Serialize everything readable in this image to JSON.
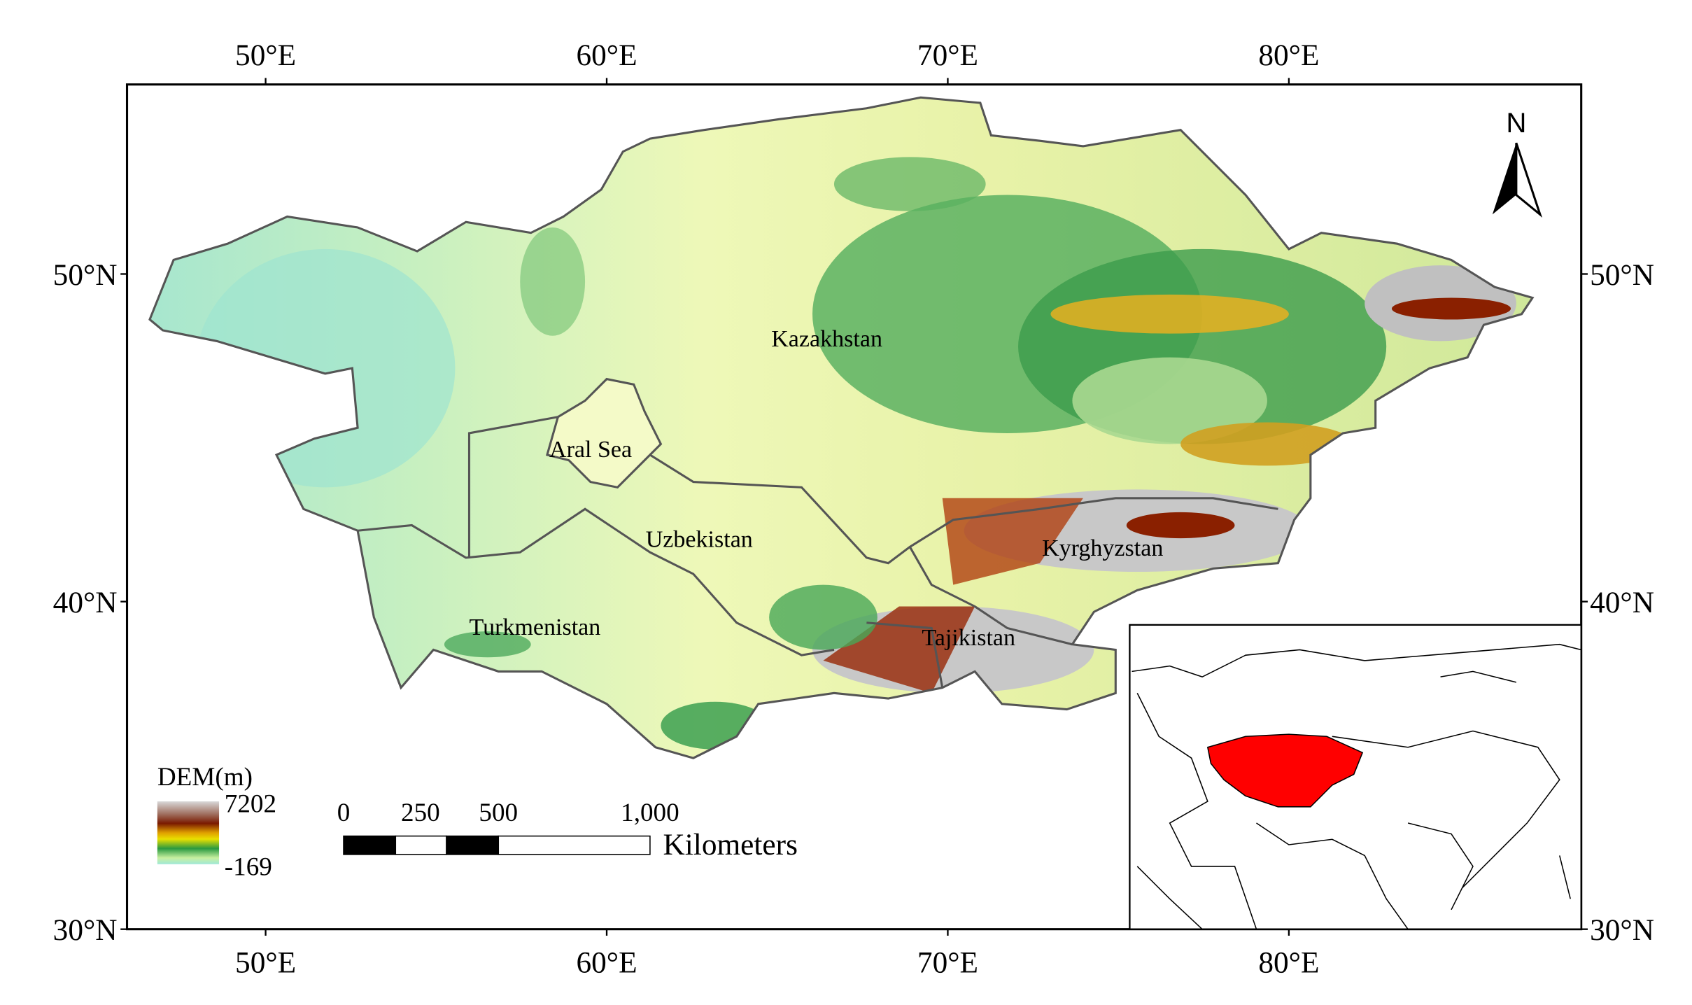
{
  "map": {
    "lon_ticks": [
      {
        "value": 50,
        "label": "50°E"
      },
      {
        "value": 60,
        "label": "60°E"
      },
      {
        "value": 70,
        "label": "70°E"
      },
      {
        "value": 80,
        "label": "80°E"
      }
    ],
    "lat_ticks": [
      {
        "value": 50,
        "label": "50°N"
      },
      {
        "value": 40,
        "label": "40°N"
      },
      {
        "value": 30,
        "label": "30°N"
      }
    ],
    "north_label": "N",
    "regions": [
      "Kazakhstan",
      "Aral Sea",
      "Uzbekistan",
      "Kyrghyzstan",
      "Turkmenistan",
      "Tajikistan"
    ]
  },
  "legend": {
    "title": "DEM(m)",
    "max": 7202,
    "min": -169
  },
  "scale_bar": {
    "labels": [
      "0",
      "250",
      "500",
      "1,000"
    ],
    "unit": "Kilometers"
  }
}
